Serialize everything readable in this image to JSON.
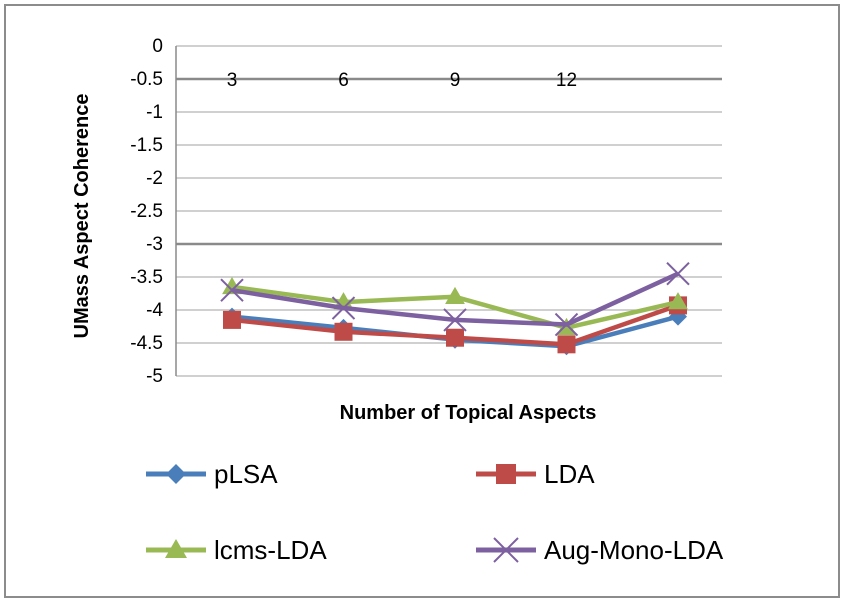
{
  "chart_data": {
    "type": "line",
    "title": "",
    "xlabel": "Number of Topical Aspects",
    "ylabel": "UMass Aspect  Coherence",
    "x_tick_labels": [
      "3",
      "6",
      "9",
      "12"
    ],
    "x_tick_positions": [
      1,
      2,
      3,
      4
    ],
    "categories": [
      1,
      2,
      3,
      4,
      5
    ],
    "ylim": [
      -5,
      0
    ],
    "yticks": [
      0,
      -0.5,
      -1,
      -1.5,
      -2,
      -2.5,
      -3,
      -3.5,
      -4,
      -4.5,
      -5
    ],
    "ytick_labels": [
      "0",
      "-0.5",
      "-1",
      "-1.5",
      "-2",
      "-2.5",
      "-3",
      "-3.5",
      "-4",
      "-4.5",
      "-5"
    ],
    "grid": true,
    "series": [
      {
        "name": "pLSA",
        "color": "#4a7ebb",
        "marker": "diamond",
        "values": [
          -4.1,
          -4.27,
          -4.45,
          -4.55,
          -4.1
        ]
      },
      {
        "name": "LDA",
        "color": "#be4b48",
        "marker": "square",
        "values": [
          -4.15,
          -4.33,
          -4.42,
          -4.52,
          -3.93
        ]
      },
      {
        "name": "lcms-LDA",
        "color": "#98b954",
        "marker": "triangle",
        "values": [
          -3.65,
          -3.88,
          -3.8,
          -4.27,
          -3.88
        ]
      },
      {
        "name": "Aug-Mono-LDA",
        "color": "#7d60a0",
        "marker": "x",
        "values": [
          -3.7,
          -3.97,
          -4.15,
          -4.22,
          -3.45
        ]
      }
    ]
  }
}
